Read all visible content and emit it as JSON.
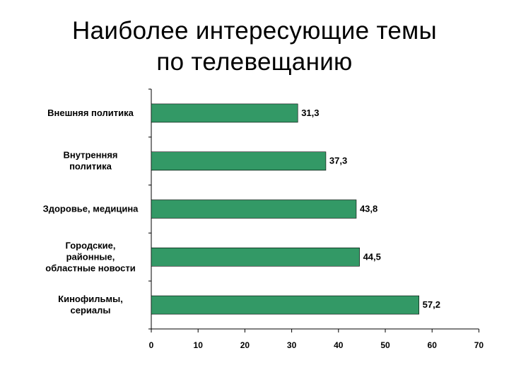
{
  "title_line1": "Наиболее интересующие темы",
  "title_line2": "по телевещанию",
  "colors": {
    "bar": "#339966",
    "bar_stroke": "#000000",
    "axis": "#000000"
  },
  "chart_data": {
    "type": "bar",
    "orientation": "horizontal",
    "categories": [
      [
        "Внешняя политика"
      ],
      [
        "Внутренняя",
        "политика"
      ],
      [
        "Здоровье, медицина"
      ],
      [
        "Городские,",
        "районные,",
        "областные новости"
      ],
      [
        "Кинофильмы,",
        "сериалы"
      ]
    ],
    "values": [
      31.3,
      37.3,
      43.8,
      44.5,
      57.2
    ],
    "value_labels": [
      "31,3",
      "37,3",
      "43,8",
      "44,5",
      "57,2"
    ],
    "xlim": [
      0,
      70
    ],
    "xticks": [
      0,
      10,
      20,
      30,
      40,
      50,
      60,
      70
    ],
    "grid": false,
    "legend": "none"
  }
}
